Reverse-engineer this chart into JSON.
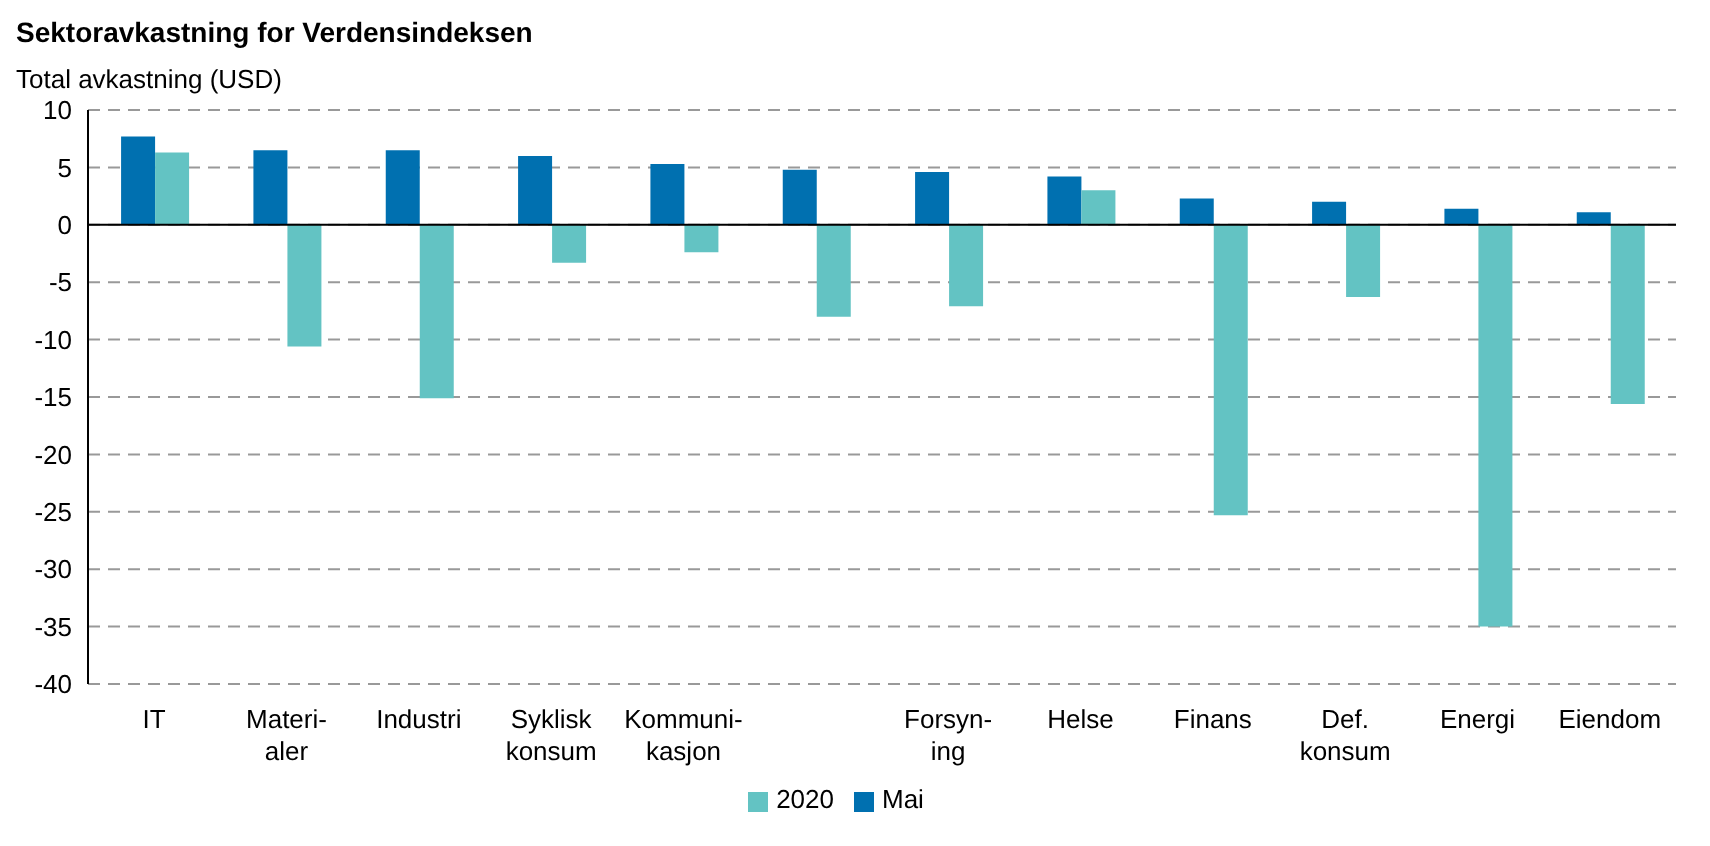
{
  "chart_data": {
    "type": "bar",
    "title": "Sektoravkastning for Verdensindeksen",
    "ylabel": "Total avkastning (USD)",
    "categories": [
      "IT",
      "Materi-\naler",
      "Industri",
      "Syklisk\nkonsum",
      "Kommuni-\nkasjon",
      null,
      "Forsyn-\ning",
      "Helse",
      "Finans",
      "Def.\nkonsum",
      "Energi",
      "Eiendom"
    ],
    "series": [
      {
        "name": "Mai",
        "color": "#0070b0",
        "values": [
          7.7,
          6.5,
          6.5,
          6.0,
          5.3,
          4.8,
          4.6,
          4.2,
          2.3,
          2.0,
          1.4,
          1.1
        ]
      },
      {
        "name": "2020",
        "color": "#63c3c3",
        "values": [
          6.3,
          -10.6,
          -15.1,
          -3.3,
          -2.4,
          -8.0,
          -7.1,
          3.0,
          -25.3,
          -6.3,
          -35.0,
          -15.6
        ]
      }
    ],
    "ylim": [
      -40,
      10
    ],
    "yticks": [
      -40,
      -35,
      -30,
      -25,
      -20,
      -15,
      -10,
      -5,
      0,
      5,
      10
    ],
    "grid": "y",
    "legend": "bottom"
  }
}
